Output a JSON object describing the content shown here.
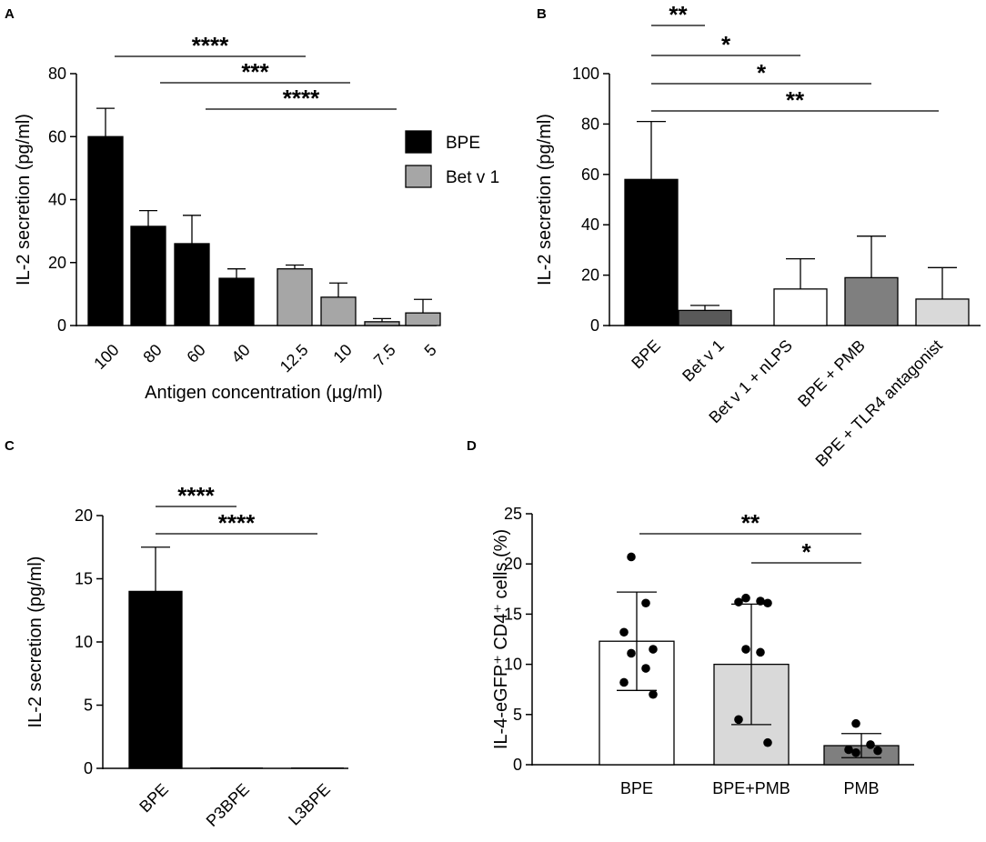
{
  "chart_data": [
    {
      "panel": "A",
      "type": "bar",
      "ylabel": "IL-2 secretion  (pg/ml)",
      "xlabel": "Antigen concentration (µg/ml)",
      "ylim": [
        0,
        80
      ],
      "yticks": [
        "0",
        "20",
        "40",
        "60",
        "80"
      ],
      "categories": [
        "100",
        "80",
        "60",
        "40",
        "12.5",
        "10",
        "7.5",
        "5"
      ],
      "series": [
        {
          "name": "BPE",
          "color": "#000000",
          "values": [
            60,
            31.5,
            26,
            15,
            null,
            null,
            null,
            null
          ],
          "errors": [
            9,
            5,
            9,
            3,
            null,
            null,
            null,
            null
          ]
        },
        {
          "name": "Bet v 1",
          "color": "#a6a6a6",
          "values": [
            null,
            null,
            null,
            null,
            18,
            9,
            1.2,
            4
          ],
          "errors": [
            null,
            null,
            null,
            null,
            1.2,
            4.5,
            1,
            4.3
          ]
        }
      ],
      "significance": [
        {
          "from": 0,
          "to": 4,
          "label": "****"
        },
        {
          "from": 1,
          "to": 5,
          "label": "***"
        },
        {
          "from": 2,
          "to": 6,
          "label": "****"
        }
      ]
    },
    {
      "panel": "B",
      "type": "bar",
      "ylabel": "IL-2 secretion (pg/ml)",
      "ylim": [
        0,
        100
      ],
      "yticks": [
        "0",
        "20",
        "40",
        "60",
        "80",
        "100"
      ],
      "categories": [
        "BPE",
        "Bet v 1",
        "Bet v 1 + nLPS",
        "BPE + PMB",
        "BPE + TLR4 antagonist"
      ],
      "values": [
        58,
        6,
        14.5,
        19,
        10.5
      ],
      "errors": [
        23,
        2,
        12,
        16.5,
        12.5
      ],
      "colors": [
        "#000000",
        "#595959",
        "#ffffff",
        "#7f7f7f",
        "#d9d9d9"
      ],
      "significance": [
        {
          "from": 0,
          "to": 1,
          "label": "**"
        },
        {
          "from": 0,
          "to": 2,
          "label": "*"
        },
        {
          "from": 0,
          "to": 3,
          "label": "*"
        },
        {
          "from": 0,
          "to": 4,
          "label": "**"
        }
      ]
    },
    {
      "panel": "C",
      "type": "bar",
      "ylabel": "IL-2 secretion (pg/ml)",
      "ylim": [
        0,
        20
      ],
      "yticks": [
        "0",
        "5",
        "10",
        "15",
        "20"
      ],
      "categories": [
        "BPE",
        "P3BPE",
        "L3BPE"
      ],
      "values": [
        14,
        0,
        0
      ],
      "errors": [
        3.5,
        0,
        0
      ],
      "colors": [
        "#000000",
        "#000000",
        "#000000"
      ],
      "significance": [
        {
          "from": 0,
          "to": 1,
          "label": "****"
        },
        {
          "from": 0,
          "to": 2,
          "label": "****"
        }
      ]
    },
    {
      "panel": "D",
      "type": "bar",
      "ylabel": "IL-4-eGFP⁺ CD4⁺ cells (%)",
      "ylim": [
        0,
        25
      ],
      "yticks": [
        "0",
        "5",
        "10",
        "15",
        "20",
        "25"
      ],
      "categories": [
        "BPE",
        "BPE+PMB",
        "PMB"
      ],
      "values": [
        12.3,
        10,
        1.9
      ],
      "errors": [
        4.9,
        6,
        1.2
      ],
      "colors": [
        "#ffffff",
        "#d9d9d9",
        "#7f7f7f"
      ],
      "points": [
        [
          20.7,
          16.1,
          13.2,
          11.5,
          11.1,
          9.6,
          8.2,
          7.0
        ],
        [
          16.6,
          16.3,
          16.2,
          16.1,
          11.5,
          11.2,
          4.5,
          2.2
        ],
        [
          4.1,
          2.0,
          1.5,
          1.4,
          1.2
        ]
      ],
      "significance": [
        {
          "from": 0,
          "to": 2,
          "label": "**"
        },
        {
          "from": 1,
          "to": 2,
          "label": "*"
        }
      ]
    }
  ]
}
